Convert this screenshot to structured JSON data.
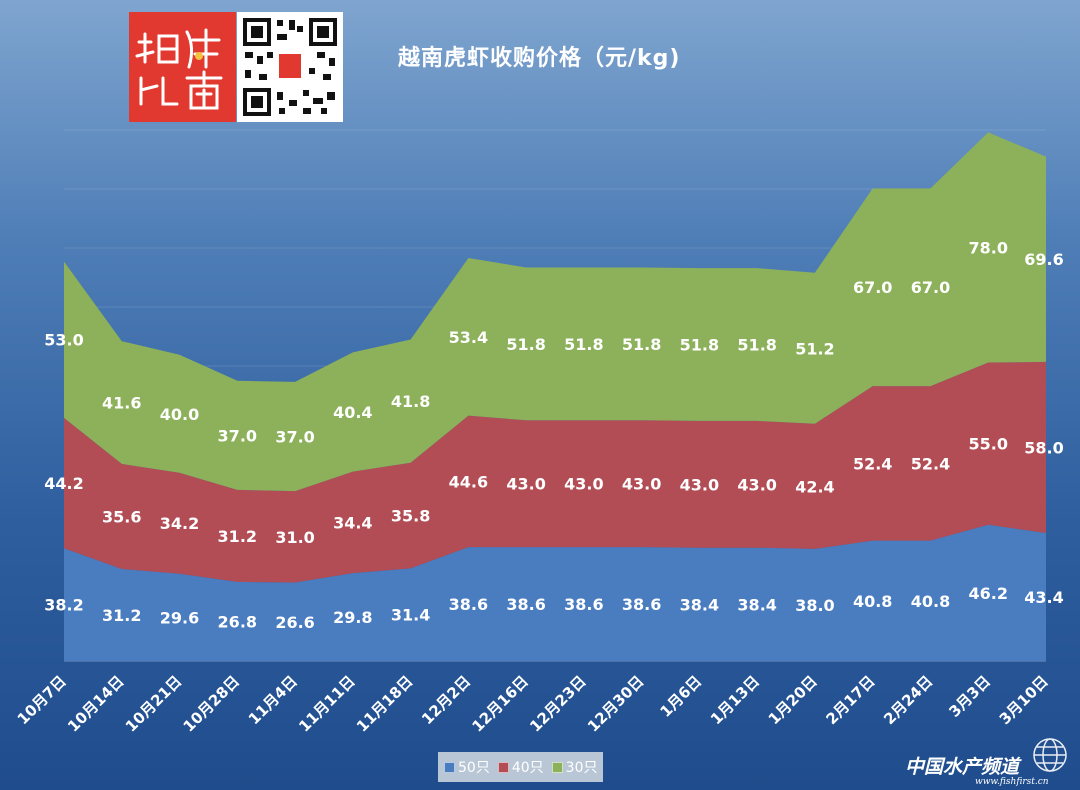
{
  "chart_data": {
    "type": "area",
    "stacked": true,
    "title": "越南虎虾收购价格（元/kg)",
    "categories": [
      "10月7日",
      "10月14日",
      "10月21日",
      "10月28日",
      "11月4日",
      "11月11日",
      "11月18日",
      "12月2日",
      "12月16日",
      "12月23日",
      "12月30日",
      "1月6日",
      "1月13日",
      "1月20日",
      "2月17日",
      "2月24日",
      "3月3日",
      "3月10日"
    ],
    "series": [
      {
        "name": "50只",
        "color": "#4a7cc0",
        "values": [
          38.2,
          31.2,
          29.6,
          26.8,
          26.6,
          29.8,
          31.4,
          38.6,
          38.6,
          38.6,
          38.6,
          38.4,
          38.4,
          38.0,
          40.8,
          40.8,
          46.2,
          43.4
        ]
      },
      {
        "name": "40只",
        "color": "#b24d55",
        "values": [
          44.2,
          35.6,
          34.2,
          31.2,
          31.0,
          34.4,
          35.8,
          44.6,
          43.0,
          43.0,
          43.0,
          43.0,
          43.0,
          42.4,
          52.4,
          52.4,
          55.0,
          58.0
        ]
      },
      {
        "name": "30只",
        "color": "#8cb15a",
        "values": [
          53.0,
          41.6,
          40.0,
          37.0,
          37.0,
          40.4,
          41.8,
          53.4,
          51.8,
          51.8,
          51.8,
          51.8,
          51.8,
          51.2,
          67.0,
          67.0,
          78.0,
          69.6
        ]
      }
    ],
    "ylim": [
      0,
      180
    ],
    "grid": true,
    "legend_position": "bottom"
  },
  "legend": [
    "50只",
    "40只",
    "30只"
  ],
  "watermark": "中国水产频道",
  "watermark_sub": "www.fishfirst.cn"
}
